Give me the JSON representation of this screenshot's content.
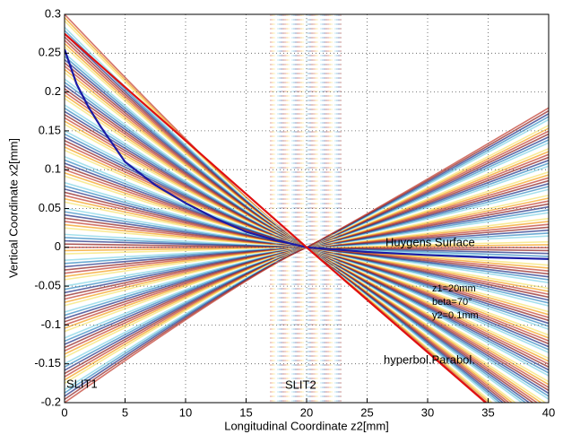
{
  "chart_data": {
    "type": "line",
    "xlabel": "Longitudinal Coordinate z2[mm]",
    "ylabel": "Vertical Coordinate x2[mm]",
    "xlim": [
      0,
      40
    ],
    "ylim": [
      -0.2,
      0.3
    ],
    "xticks": [
      0,
      5,
      10,
      15,
      20,
      25,
      30,
      35,
      40
    ],
    "yticks": [
      -0.2,
      -0.15,
      -0.1,
      -0.05,
      0,
      0.05,
      0.1,
      0.15,
      0.2,
      0.25,
      0.3
    ],
    "grid": true,
    "series": [
      {
        "color": "#1a1aa6",
        "x": [
          0,
          1,
          2,
          3,
          5,
          7.5,
          10,
          12.5,
          15,
          17.5,
          20,
          25,
          30,
          35,
          40
        ],
        "values": [
          0.255,
          0.21,
          0.18,
          0.155,
          0.11,
          0.08,
          0.057,
          0.037,
          0.02,
          0.009,
          0,
          -0.006,
          -0.01,
          -0.013,
          -0.015
        ]
      },
      {
        "color": "#e01010",
        "x": [
          0,
          20,
          34.8
        ],
        "values": [
          0.275,
          0,
          -0.2
        ]
      }
    ],
    "annotations": [
      "Huygens Surface",
      "z1=20mm",
      "beta=70°",
      "y2=0.1mm",
      "hyperbol.Parabol.",
      "SLIT1",
      "SLIT2"
    ]
  }
}
